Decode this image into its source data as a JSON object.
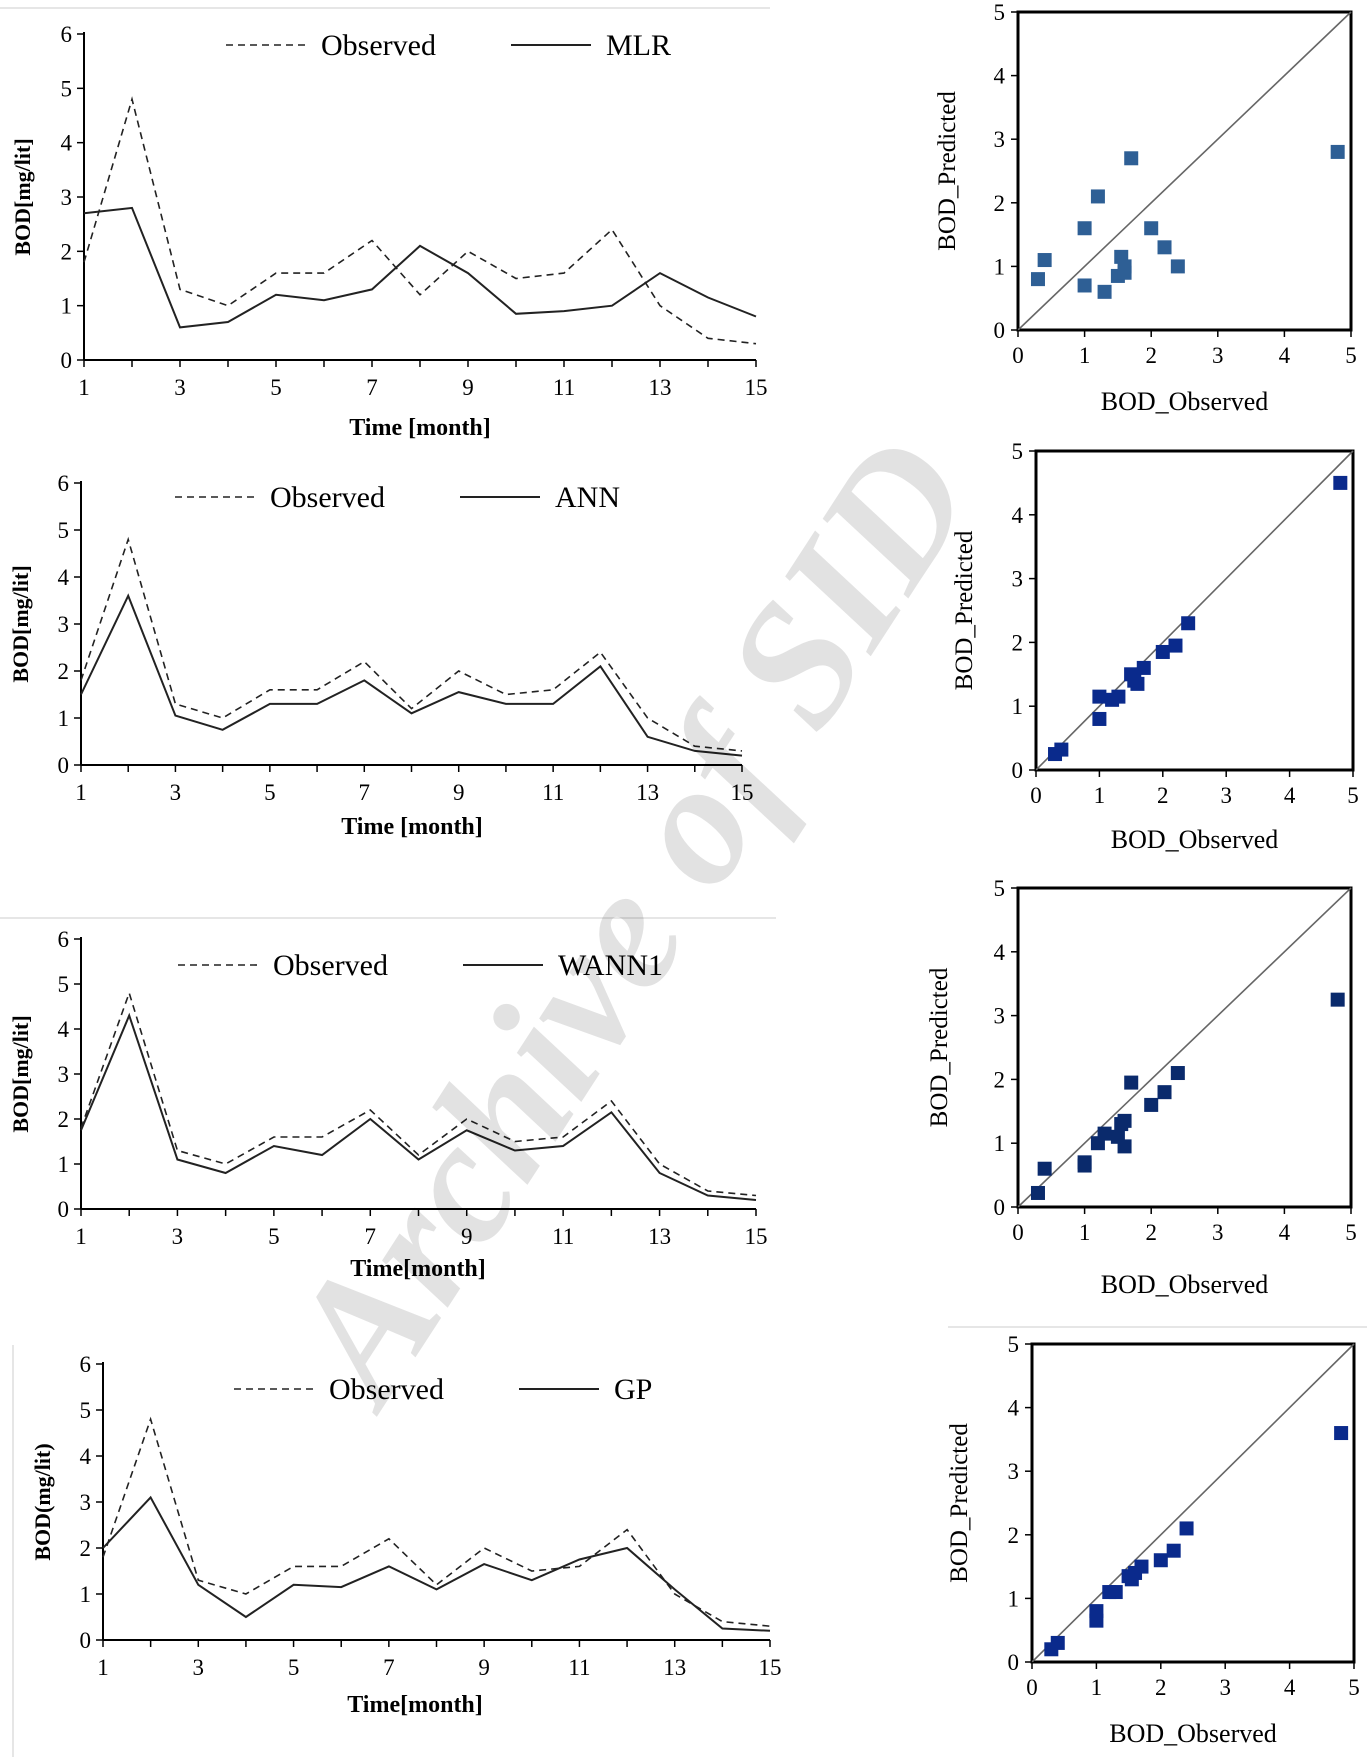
{
  "watermark": "Archive of SID",
  "chart_data": [
    {
      "type": "line",
      "x": [
        1,
        2,
        3,
        4,
        5,
        6,
        7,
        8,
        9,
        10,
        11,
        12,
        13,
        14,
        15
      ],
      "series": [
        {
          "name": "Observed",
          "style": "dashed",
          "values": [
            1.8,
            4.8,
            1.3,
            1.0,
            1.6,
            1.6,
            2.2,
            1.2,
            2.0,
            1.5,
            1.6,
            2.4,
            1.0,
            0.4,
            0.3
          ]
        },
        {
          "name": "MLR",
          "style": "solid",
          "values": [
            2.7,
            2.8,
            0.6,
            0.7,
            1.2,
            1.1,
            1.3,
            2.1,
            1.6,
            0.85,
            0.9,
            1.0,
            1.6,
            1.15,
            0.8
          ]
        }
      ],
      "xlabel": "Time [month]",
      "ylabel": "BOD[mg/lit]",
      "xlim": [
        1,
        15
      ],
      "ylim": [
        0,
        6
      ],
      "xticks": [
        "1",
        "3",
        "5",
        "7",
        "9",
        "11",
        "13",
        "15"
      ],
      "yticks": [
        "0",
        "1",
        "2",
        "3",
        "4",
        "5",
        "6"
      ],
      "legend_position": "top-center",
      "grid": false
    },
    {
      "type": "scatter",
      "points": [
        [
          0.3,
          0.8
        ],
        [
          0.4,
          1.1
        ],
        [
          1.0,
          1.6
        ],
        [
          1.0,
          0.7
        ],
        [
          1.2,
          2.1
        ],
        [
          1.3,
          0.6
        ],
        [
          1.5,
          0.85
        ],
        [
          1.55,
          1.15
        ],
        [
          1.6,
          1.0
        ],
        [
          1.6,
          0.9
        ],
        [
          1.7,
          2.7
        ],
        [
          2.0,
          1.6
        ],
        [
          2.2,
          1.3
        ],
        [
          2.4,
          1.0
        ],
        [
          4.8,
          2.8
        ]
      ],
      "xlabel": "BOD_Observed",
      "ylabel": "BOD_Predicted",
      "xlim": [
        0,
        5
      ],
      "ylim": [
        0,
        5
      ],
      "xticks": [
        "0",
        "1",
        "2",
        "3",
        "4",
        "5"
      ],
      "yticks": [
        "0",
        "1",
        "2",
        "3",
        "4",
        "5"
      ],
      "reference_line": "y = x",
      "marker_color": "#2e5f95",
      "grid": false
    },
    {
      "type": "line",
      "x": [
        1,
        2,
        3,
        4,
        5,
        6,
        7,
        8,
        9,
        10,
        11,
        12,
        13,
        14,
        15
      ],
      "series": [
        {
          "name": "Observed",
          "style": "dashed",
          "values": [
            1.8,
            4.8,
            1.3,
            1.0,
            1.6,
            1.6,
            2.2,
            1.2,
            2.0,
            1.5,
            1.6,
            2.4,
            1.0,
            0.4,
            0.3
          ]
        },
        {
          "name": "ANN",
          "style": "solid",
          "values": [
            1.5,
            3.6,
            1.05,
            0.75,
            1.3,
            1.3,
            1.8,
            1.1,
            1.55,
            1.3,
            1.3,
            2.1,
            0.6,
            0.3,
            0.2
          ]
        }
      ],
      "xlabel": "Time [month]",
      "ylabel": "BOD[mg/lit]",
      "xlim": [
        1,
        15
      ],
      "ylim": [
        0,
        6
      ],
      "xticks": [
        "1",
        "3",
        "5",
        "7",
        "9",
        "11",
        "13",
        "15"
      ],
      "yticks": [
        "0",
        "1",
        "2",
        "3",
        "4",
        "5",
        "6"
      ],
      "legend_position": "top-center",
      "grid": false
    },
    {
      "type": "scatter",
      "points": [
        [
          0.3,
          0.25
        ],
        [
          0.4,
          0.32
        ],
        [
          1.0,
          1.15
        ],
        [
          1.0,
          0.8
        ],
        [
          1.2,
          1.1
        ],
        [
          1.3,
          1.15
        ],
        [
          1.5,
          1.5
        ],
        [
          1.55,
          1.4
        ],
        [
          1.6,
          1.35
        ],
        [
          1.7,
          1.6
        ],
        [
          2.0,
          1.85
        ],
        [
          2.2,
          1.95
        ],
        [
          2.4,
          2.3
        ],
        [
          4.8,
          4.5
        ]
      ],
      "xlabel": "BOD_Observed",
      "ylabel": "BOD_Predicted",
      "xlim": [
        0,
        5
      ],
      "ylim": [
        0,
        5
      ],
      "xticks": [
        "0",
        "1",
        "2",
        "3",
        "4",
        "5"
      ],
      "yticks": [
        "0",
        "1",
        "2",
        "3",
        "4",
        "5"
      ],
      "reference_line": "y = x",
      "marker_color": "#0a2a8c",
      "grid": false
    },
    {
      "type": "line",
      "x": [
        1,
        2,
        3,
        4,
        5,
        6,
        7,
        8,
        9,
        10,
        11,
        12,
        13,
        14,
        15
      ],
      "series": [
        {
          "name": "Observed",
          "style": "dashed",
          "values": [
            1.8,
            4.8,
            1.3,
            1.0,
            1.6,
            1.6,
            2.2,
            1.2,
            2.0,
            1.5,
            1.6,
            2.4,
            1.0,
            0.4,
            0.3
          ]
        },
        {
          "name": "WANN1",
          "style": "solid",
          "values": [
            1.75,
            4.3,
            1.1,
            0.8,
            1.4,
            1.2,
            2.0,
            1.1,
            1.75,
            1.3,
            1.4,
            2.15,
            0.8,
            0.3,
            0.2
          ]
        }
      ],
      "xlabel": "Time[month]",
      "ylabel": "BOD[mg/lit]",
      "xlim": [
        1,
        15
      ],
      "ylim": [
        0,
        6
      ],
      "xticks": [
        "1",
        "3",
        "5",
        "7",
        "9",
        "11",
        "13",
        "15"
      ],
      "yticks": [
        "0",
        "1",
        "2",
        "3",
        "4",
        "5",
        "6"
      ],
      "legend_position": "top-center",
      "grid": false
    },
    {
      "type": "scatter",
      "points": [
        [
          0.3,
          0.22
        ],
        [
          0.4,
          0.6
        ],
        [
          1.0,
          0.7
        ],
        [
          1.0,
          0.65
        ],
        [
          1.2,
          1.0
        ],
        [
          1.3,
          1.15
        ],
        [
          1.5,
          1.1
        ],
        [
          1.55,
          1.3
        ],
        [
          1.6,
          1.35
        ],
        [
          1.6,
          0.95
        ],
        [
          1.7,
          1.95
        ],
        [
          2.0,
          1.6
        ],
        [
          2.2,
          1.8
        ],
        [
          2.4,
          2.1
        ],
        [
          4.8,
          3.25
        ]
      ],
      "xlabel": "BOD_Observed",
      "ylabel": "BOD_Predicted",
      "xlim": [
        0,
        5
      ],
      "ylim": [
        0,
        5
      ],
      "xticks": [
        "0",
        "1",
        "2",
        "3",
        "4",
        "5"
      ],
      "yticks": [
        "0",
        "1",
        "2",
        "3",
        "4",
        "5"
      ],
      "reference_line": "y = x",
      "marker_color": "#0a2a6c",
      "grid": false
    },
    {
      "type": "line",
      "x": [
        1,
        2,
        3,
        4,
        5,
        6,
        7,
        8,
        9,
        10,
        11,
        12,
        13,
        14,
        15
      ],
      "series": [
        {
          "name": "Observed",
          "style": "dashed",
          "values": [
            1.8,
            4.8,
            1.3,
            1.0,
            1.6,
            1.6,
            2.2,
            1.2,
            2.0,
            1.5,
            1.6,
            2.4,
            1.0,
            0.4,
            0.3
          ]
        },
        {
          "name": "GP",
          "style": "solid",
          "values": [
            2.0,
            3.1,
            1.2,
            0.5,
            1.2,
            1.15,
            1.6,
            1.1,
            1.65,
            1.3,
            1.75,
            2.0,
            1.1,
            0.25,
            0.2
          ]
        }
      ],
      "xlabel": "Time[month]",
      "ylabel": "BOD(mg/lit)",
      "xlim": [
        1,
        15
      ],
      "ylim": [
        0,
        6
      ],
      "xticks": [
        "1",
        "3",
        "5",
        "7",
        "9",
        "11",
        "13",
        "15"
      ],
      "yticks": [
        "0",
        "1",
        "2",
        "3",
        "4",
        "5",
        "6"
      ],
      "legend_position": "top-center",
      "grid": false
    },
    {
      "type": "scatter",
      "points": [
        [
          0.3,
          0.2
        ],
        [
          0.4,
          0.3
        ],
        [
          1.0,
          0.8
        ],
        [
          1.0,
          0.65
        ],
        [
          1.2,
          1.1
        ],
        [
          1.3,
          1.1
        ],
        [
          1.5,
          1.35
        ],
        [
          1.55,
          1.3
        ],
        [
          1.6,
          1.4
        ],
        [
          1.7,
          1.5
        ],
        [
          2.0,
          1.6
        ],
        [
          2.2,
          1.75
        ],
        [
          2.4,
          2.1
        ],
        [
          4.8,
          3.6
        ]
      ],
      "xlabel": "BOD_Observed",
      "ylabel": "BOD_Predicted",
      "xlim": [
        0,
        5
      ],
      "ylim": [
        0,
        5
      ],
      "xticks": [
        "0",
        "1",
        "2",
        "3",
        "4",
        "5"
      ],
      "yticks": [
        "0",
        "1",
        "2",
        "3",
        "4",
        "5"
      ],
      "reference_line": "y = x",
      "marker_color": "#0a2a8c",
      "grid": false
    }
  ]
}
